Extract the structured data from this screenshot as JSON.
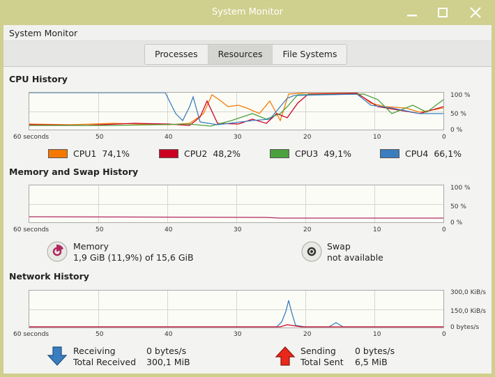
{
  "window": {
    "title": "System Monitor",
    "controls": {
      "minimize": "minimize-icon",
      "maximize": "maximize-icon",
      "close": "close-icon"
    }
  },
  "menubar": {
    "app_menu": "System Monitor"
  },
  "tabs": [
    {
      "label": "Processes",
      "active": false
    },
    {
      "label": "Resources",
      "active": true
    },
    {
      "label": "File Systems",
      "active": false
    }
  ],
  "axis": {
    "x_ticks": [
      "60 seconds",
      "50",
      "40",
      "30",
      "20",
      "10",
      "0"
    ],
    "percent_ticks": [
      "100 %",
      "50 %",
      "0 %"
    ],
    "network_ticks": [
      "300,0 KiB/s",
      "150,0 KiB/s",
      "0 bytes/s"
    ]
  },
  "cpu": {
    "title": "CPU History",
    "cores": [
      {
        "name": "CPU1",
        "value": "74,1%",
        "color": "#f57900"
      },
      {
        "name": "CPU2",
        "value": "48,2%",
        "color": "#cc0022"
      },
      {
        "name": "CPU3",
        "value": "49,1%",
        "color": "#4aa13d"
      },
      {
        "name": "CPU4",
        "value": "66,1%",
        "color": "#3a7ebf"
      }
    ]
  },
  "memory": {
    "title": "Memory and Swap History",
    "memory_label": "Memory",
    "memory_value": "1,9 GiB (11,9%) of 15,6 GiB",
    "memory_color": "#b0285e",
    "swap_label": "Swap",
    "swap_value": "not available"
  },
  "network": {
    "title": "Network History",
    "receiving_label": "Receiving",
    "receiving_value": "0 bytes/s",
    "total_received_label": "Total Received",
    "total_received_value": "300,1 MiB",
    "sending_label": "Sending",
    "sending_value": "0 bytes/s",
    "total_sent_label": "Total Sent",
    "total_sent_value": "6,5 MiB",
    "receive_color": "#3a7ebf",
    "send_color": "#cc0022"
  }
}
